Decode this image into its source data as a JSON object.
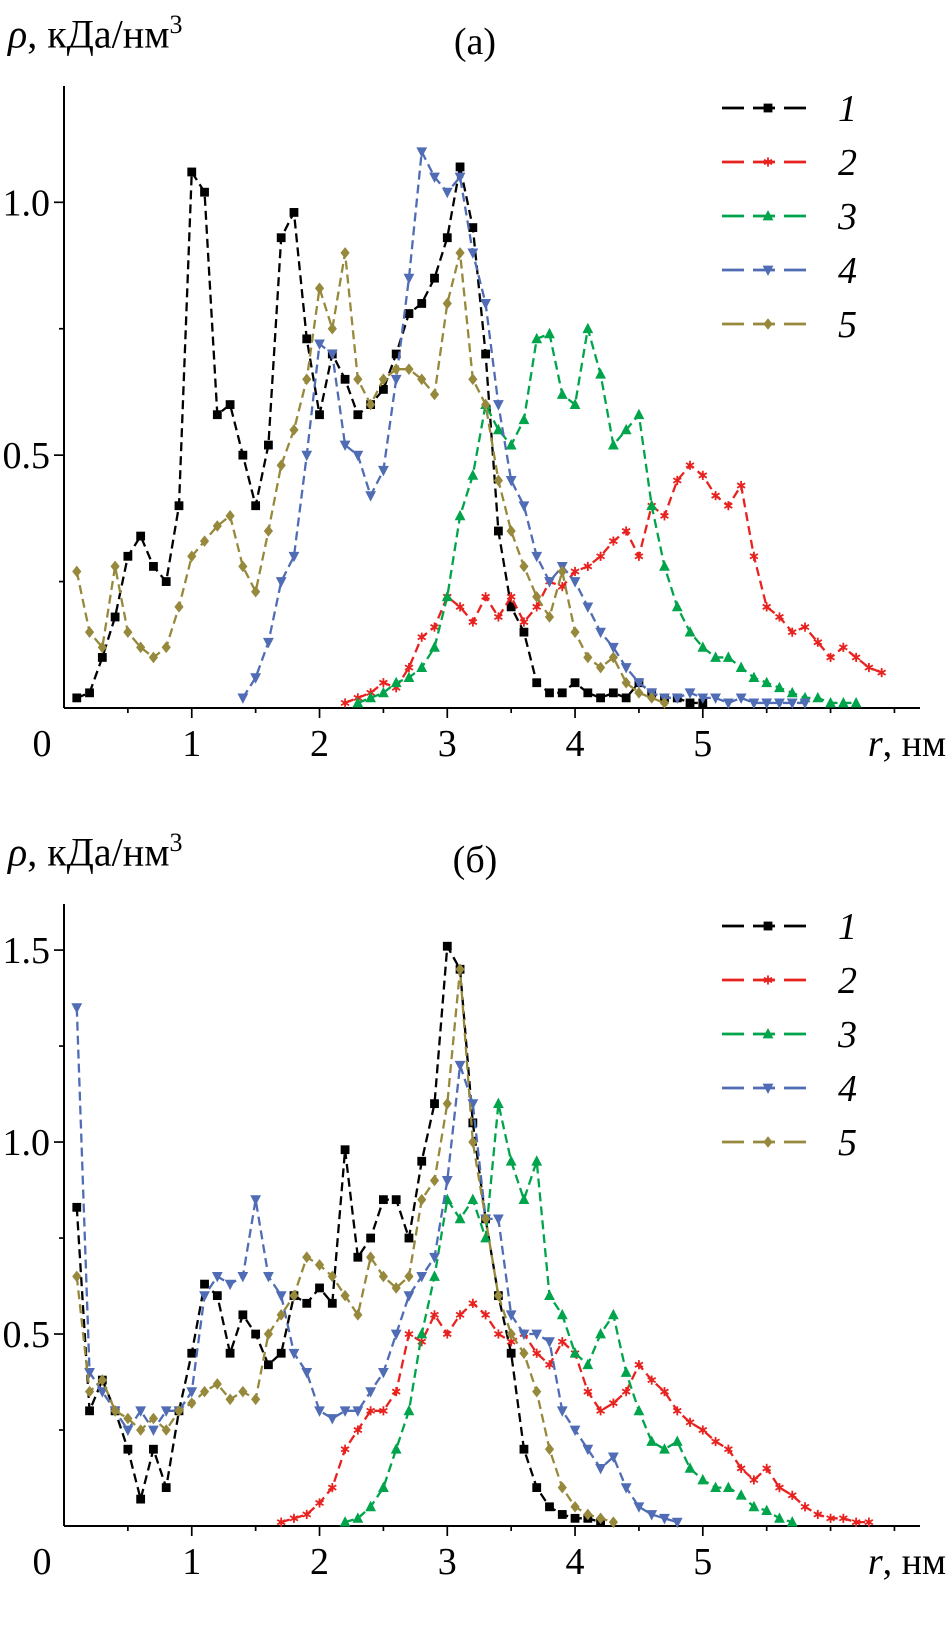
{
  "chart_data": [
    {
      "id": "a",
      "type": "line",
      "title": "(а)",
      "ylabel": "ρ, кДа/нм³",
      "ylabel_parts": {
        "symbol": "ρ",
        "rest": ", кДа/нм",
        "sup": "3"
      },
      "xlabel": "r, нм",
      "xlabel_parts": {
        "symbol": "r",
        "rest": ", нм"
      },
      "xlim": [
        0,
        6.7
      ],
      "ylim": [
        0,
        1.23
      ],
      "x_ticks": [
        0,
        1,
        2,
        3,
        4,
        5
      ],
      "x_tick_labels": [
        "0",
        "1",
        "2",
        "3",
        "4",
        "5"
      ],
      "x_minor_step": 0.5,
      "y_ticks": [
        0.5,
        1.0
      ],
      "y_tick_labels": [
        "0.5",
        "1.0"
      ],
      "y_minor_step": 0.25,
      "grid": false,
      "legend_position": "top-right",
      "series": [
        {
          "name": "1",
          "color": "#000000",
          "marker": "square",
          "x0": 0.1,
          "dx": 0.1,
          "values": [
            0.02,
            0.03,
            0.1,
            0.18,
            0.3,
            0.34,
            0.28,
            0.25,
            0.4,
            1.06,
            1.02,
            0.58,
            0.6,
            0.5,
            0.4,
            0.52,
            0.93,
            0.98,
            0.73,
            0.58,
            0.7,
            0.65,
            0.58,
            0.6,
            0.63,
            0.7,
            0.78,
            0.8,
            0.85,
            0.93,
            1.07,
            0.95,
            0.7,
            0.35,
            0.2,
            0.15,
            0.05,
            0.03,
            0.03,
            0.05,
            0.03,
            0.02,
            0.03,
            0.02,
            0.05,
            0.03,
            0.02,
            0.02,
            0.01,
            0.01
          ]
        },
        {
          "name": "2",
          "color": "#e8231f",
          "marker": "asterisk",
          "x0": 2.2,
          "dx": 0.1,
          "values": [
            0.01,
            0.02,
            0.03,
            0.05,
            0.04,
            0.08,
            0.14,
            0.16,
            0.22,
            0.2,
            0.17,
            0.22,
            0.18,
            0.22,
            0.17,
            0.2,
            0.25,
            0.24,
            0.27,
            0.28,
            0.3,
            0.33,
            0.35,
            0.3,
            0.4,
            0.38,
            0.45,
            0.48,
            0.46,
            0.42,
            0.4,
            0.44,
            0.3,
            0.2,
            0.18,
            0.15,
            0.16,
            0.13,
            0.1,
            0.12,
            0.1,
            0.08,
            0.07
          ]
        },
        {
          "name": "3",
          "color": "#00a44b",
          "marker": "triangle-up",
          "x0": 2.3,
          "dx": 0.1,
          "values": [
            0.01,
            0.02,
            0.03,
            0.05,
            0.06,
            0.08,
            0.12,
            0.22,
            0.38,
            0.46,
            0.6,
            0.55,
            0.52,
            0.57,
            0.73,
            0.74,
            0.62,
            0.6,
            0.75,
            0.66,
            0.52,
            0.55,
            0.58,
            0.4,
            0.28,
            0.2,
            0.15,
            0.12,
            0.1,
            0.1,
            0.08,
            0.06,
            0.05,
            0.04,
            0.03,
            0.02,
            0.02,
            0.01,
            0.01,
            0.01
          ]
        },
        {
          "name": "4",
          "color": "#4f6cb4",
          "marker": "triangle-down",
          "x0": 1.4,
          "dx": 0.1,
          "values": [
            0.02,
            0.06,
            0.13,
            0.25,
            0.3,
            0.5,
            0.72,
            0.7,
            0.52,
            0.5,
            0.42,
            0.47,
            0.65,
            0.85,
            1.1,
            1.05,
            1.02,
            1.05,
            0.9,
            0.8,
            0.6,
            0.45,
            0.4,
            0.3,
            0.25,
            0.28,
            0.25,
            0.2,
            0.15,
            0.12,
            0.08,
            0.05,
            0.03,
            0.02,
            0.02,
            0.03,
            0.02,
            0.02,
            0.01,
            0.02,
            0.01,
            0.01,
            0.01,
            0.01,
            0.01
          ]
        },
        {
          "name": "5",
          "color": "#96893c",
          "marker": "diamond",
          "x0": 0.1,
          "dx": 0.1,
          "values": [
            0.27,
            0.15,
            0.12,
            0.28,
            0.15,
            0.12,
            0.1,
            0.12,
            0.2,
            0.3,
            0.33,
            0.36,
            0.38,
            0.28,
            0.23,
            0.35,
            0.48,
            0.55,
            0.65,
            0.83,
            0.75,
            0.9,
            0.65,
            0.6,
            0.65,
            0.67,
            0.67,
            0.65,
            0.62,
            0.8,
            0.9,
            0.65,
            0.6,
            0.45,
            0.35,
            0.28,
            0.22,
            0.18,
            0.27,
            0.15,
            0.1,
            0.08,
            0.1,
            0.05,
            0.03,
            0.02,
            0.01
          ]
        }
      ]
    },
    {
      "id": "b",
      "type": "line",
      "title": "(б)",
      "ylabel": "ρ, кДа/нм³",
      "ylabel_parts": {
        "symbol": "ρ",
        "rest": ", кДа/нм",
        "sup": "3"
      },
      "xlabel": "r, нм",
      "xlabel_parts": {
        "symbol": "r",
        "rest": ", нм"
      },
      "xlim": [
        0,
        6.7
      ],
      "ylim": [
        0,
        1.62
      ],
      "x_ticks": [
        0,
        1,
        2,
        3,
        4,
        5
      ],
      "x_tick_labels": [
        "0",
        "1",
        "2",
        "3",
        "4",
        "5"
      ],
      "x_minor_step": 0.5,
      "y_ticks": [
        0.5,
        1.0,
        1.5
      ],
      "y_tick_labels": [
        "0.5",
        "1.0",
        "1.5"
      ],
      "y_minor_step": 0.25,
      "grid": false,
      "legend_position": "top-right",
      "series": [
        {
          "name": "1",
          "color": "#000000",
          "marker": "square",
          "x0": 0.1,
          "dx": 0.1,
          "values": [
            0.83,
            0.3,
            0.38,
            0.3,
            0.2,
            0.07,
            0.2,
            0.1,
            0.3,
            0.45,
            0.63,
            0.6,
            0.45,
            0.55,
            0.5,
            0.42,
            0.45,
            0.6,
            0.58,
            0.62,
            0.58,
            0.98,
            0.7,
            0.75,
            0.85,
            0.85,
            0.75,
            0.95,
            1.1,
            1.51,
            1.45,
            1.05,
            0.8,
            0.6,
            0.45,
            0.2,
            0.1,
            0.05,
            0.03,
            0.02,
            0.02,
            0.01
          ]
        },
        {
          "name": "2",
          "color": "#e8231f",
          "marker": "asterisk",
          "x0": 1.7,
          "dx": 0.1,
          "values": [
            0.01,
            0.02,
            0.03,
            0.06,
            0.1,
            0.2,
            0.25,
            0.3,
            0.3,
            0.35,
            0.5,
            0.48,
            0.55,
            0.5,
            0.55,
            0.58,
            0.55,
            0.5,
            0.48,
            0.5,
            0.45,
            0.42,
            0.48,
            0.45,
            0.35,
            0.3,
            0.32,
            0.35,
            0.42,
            0.38,
            0.35,
            0.3,
            0.27,
            0.25,
            0.22,
            0.2,
            0.15,
            0.12,
            0.15,
            0.1,
            0.08,
            0.05,
            0.03,
            0.02,
            0.02,
            0.01,
            0.01
          ]
        },
        {
          "name": "3",
          "color": "#00a44b",
          "marker": "triangle-up",
          "x0": 2.2,
          "dx": 0.1,
          "values": [
            0.01,
            0.02,
            0.05,
            0.1,
            0.2,
            0.3,
            0.5,
            0.65,
            0.85,
            0.8,
            0.85,
            0.75,
            1.1,
            0.95,
            0.85,
            0.95,
            0.6,
            0.55,
            0.45,
            0.42,
            0.5,
            0.55,
            0.4,
            0.3,
            0.22,
            0.2,
            0.22,
            0.15,
            0.12,
            0.1,
            0.1,
            0.08,
            0.05,
            0.04,
            0.02,
            0.01
          ]
        },
        {
          "name": "4",
          "color": "#4f6cb4",
          "marker": "triangle-down",
          "x0": 0.1,
          "dx": 0.1,
          "values": [
            1.35,
            0.4,
            0.35,
            0.3,
            0.25,
            0.3,
            0.25,
            0.3,
            0.3,
            0.35,
            0.6,
            0.65,
            0.63,
            0.65,
            0.85,
            0.65,
            0.6,
            0.45,
            0.4,
            0.3,
            0.28,
            0.3,
            0.3,
            0.35,
            0.4,
            0.5,
            0.6,
            0.65,
            0.7,
            0.9,
            1.2,
            1.1,
            0.8,
            0.8,
            0.55,
            0.5,
            0.5,
            0.48,
            0.3,
            0.25,
            0.2,
            0.15,
            0.18,
            0.1,
            0.05,
            0.03,
            0.02,
            0.01
          ]
        },
        {
          "name": "5",
          "color": "#96893c",
          "marker": "diamond",
          "x0": 0.1,
          "dx": 0.1,
          "values": [
            0.65,
            0.35,
            0.38,
            0.3,
            0.28,
            0.25,
            0.28,
            0.25,
            0.3,
            0.32,
            0.35,
            0.37,
            0.33,
            0.35,
            0.33,
            0.5,
            0.55,
            0.6,
            0.7,
            0.68,
            0.65,
            0.6,
            0.55,
            0.7,
            0.65,
            0.62,
            0.65,
            0.85,
            0.9,
            1.1,
            1.45,
            1.0,
            0.8,
            0.6,
            0.5,
            0.45,
            0.35,
            0.2,
            0.1,
            0.05,
            0.03,
            0.02,
            0.01
          ]
        }
      ]
    }
  ]
}
